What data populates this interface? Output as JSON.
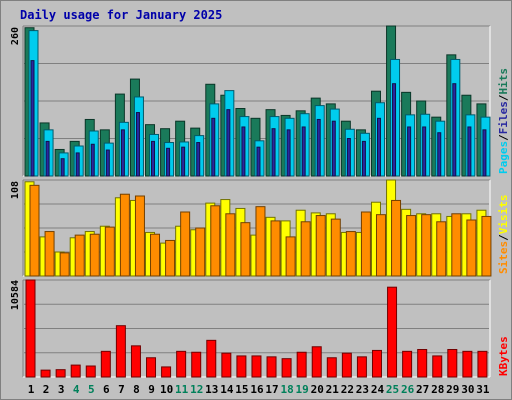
{
  "chart_data": {
    "type": "bar",
    "title": "Daily usage for January 2025",
    "categories": [
      "1",
      "2",
      "3",
      "4",
      "5",
      "6",
      "7",
      "8",
      "9",
      "10",
      "11",
      "12",
      "13",
      "14",
      "15",
      "16",
      "17",
      "18",
      "19",
      "20",
      "21",
      "22",
      "23",
      "24",
      "25",
      "26",
      "27",
      "28",
      "29",
      "30",
      "31"
    ],
    "weekend_days": [
      "4",
      "5",
      "11",
      "12",
      "18",
      "19",
      "25",
      "26"
    ],
    "panels": [
      {
        "name": "top",
        "max_label": "260",
        "ylim": [
          0,
          260
        ],
        "grid": true,
        "legend": [
          "Pages",
          "Files",
          "Hits"
        ],
        "series": [
          {
            "name": "Hits",
            "color": "#1a7a5a",
            "values": [
              257,
              92,
              46,
              60,
              98,
              80,
              142,
              168,
              89,
              82,
              95,
              83,
              159,
              140,
              117,
              100,
              115,
              105,
              113,
              135,
              125,
              95,
              80,
              147,
              260,
              145,
              130,
              102,
              210,
              140,
              125
            ]
          },
          {
            "name": "Files",
            "color": "#00ccee",
            "values": [
              252,
              80,
              40,
              52,
              78,
              57,
              93,
              137,
              72,
              58,
              59,
              70,
              125,
              148,
              103,
              61,
              103,
              100,
              108,
              122,
              116,
              81,
              74,
              127,
              202,
              106,
              107,
              95,
              202,
              106,
              102
            ]
          },
          {
            "name": "Pages",
            "color": "#2828a0",
            "values": [
              200,
              60,
              30,
              40,
              55,
              45,
              80,
              110,
              60,
              48,
              50,
              58,
              100,
              115,
              85,
              50,
              82,
              80,
              85,
              98,
              95,
              65,
              60,
              100,
              160,
              85,
              85,
              75,
              160,
              85,
              80
            ]
          }
        ]
      },
      {
        "name": "middle",
        "max_label": "108",
        "ylim": [
          0,
          108
        ],
        "grid": true,
        "legend": [
          "Sites",
          "Visits"
        ],
        "series": [
          {
            "name": "Visits",
            "color": "#ffff00",
            "values": [
              106,
              44,
              27,
              43,
              50,
              56,
              88,
              85,
              49,
              37,
              56,
              52,
              82,
              86,
              76,
              46,
              66,
              62,
              74,
              71,
              70,
              49,
              49,
              83,
              108,
              75,
              70,
              70,
              67,
              70,
              74
            ]
          },
          {
            "name": "Sites",
            "color": "#ff8c00",
            "values": [
              102,
              50,
              26,
              46,
              47,
              55,
              92,
              90,
              47,
              40,
              72,
              54,
              79,
              70,
              60,
              78,
              62,
              44,
              61,
              68,
              64,
              50,
              72,
              69,
              85,
              68,
              69,
              61,
              70,
              63,
              67
            ]
          }
        ]
      },
      {
        "name": "bottom",
        "max_label": "10584",
        "ylim": [
          0,
          10584
        ],
        "grid": true,
        "legend": [
          "KBytes"
        ],
        "series": [
          {
            "name": "KBytes",
            "color": "#ff0000",
            "values": [
              10584,
              750,
              800,
              1300,
              1200,
              2800,
              5600,
              3400,
              2100,
              1100,
              2800,
              2700,
              4000,
              2600,
              2300,
              2300,
              2200,
              2000,
              2700,
              3300,
              2100,
              2600,
              2200,
              2900,
              9800,
              2800,
              3000,
              2300,
              3000,
              2800,
              2800
            ]
          }
        ]
      }
    ]
  }
}
